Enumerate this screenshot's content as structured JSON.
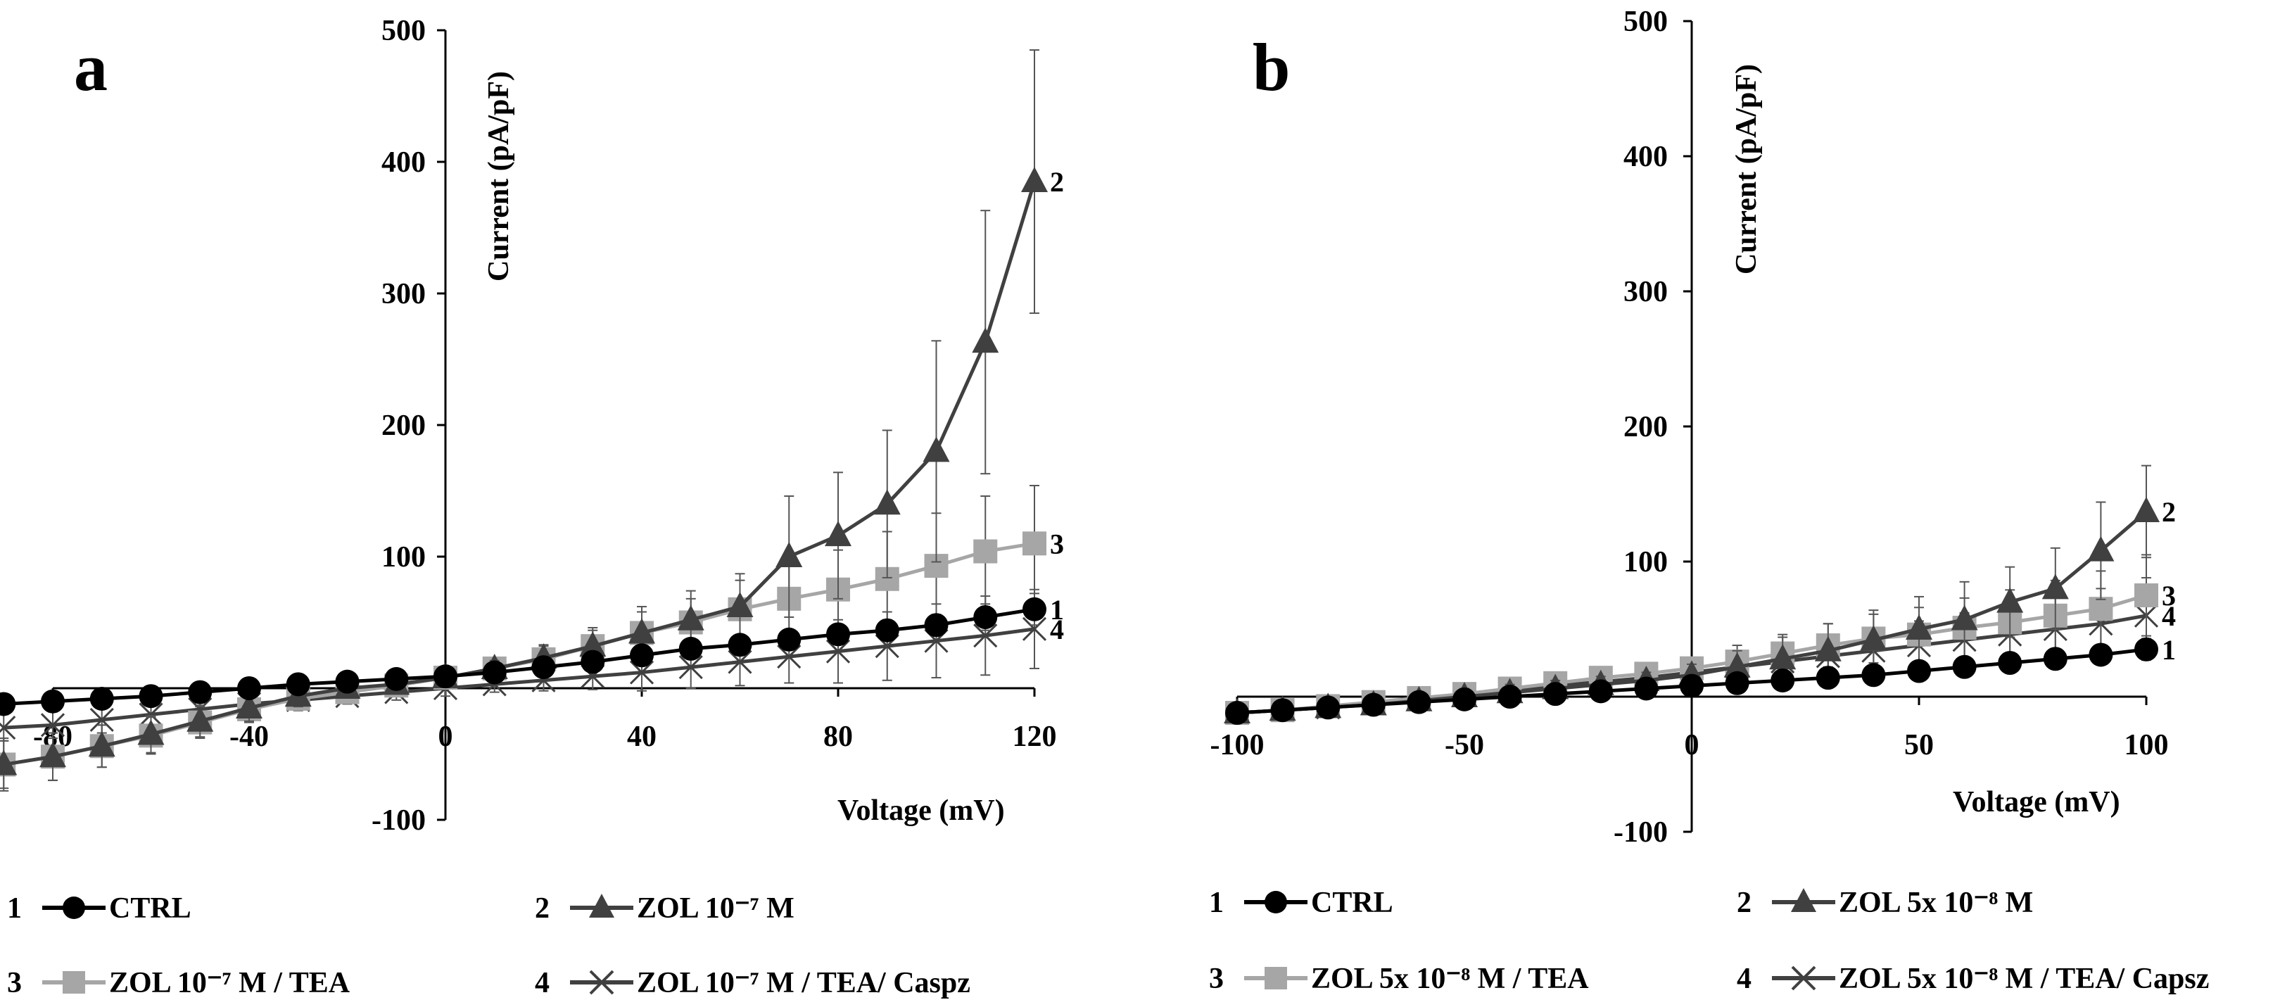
{
  "chart_data": [
    {
      "type": "line",
      "panel_label": "a",
      "xlabel": "Voltage (mV)",
      "ylabel": "Current  (pA/pF)",
      "xlim": [
        -80,
        120
      ],
      "ylim": [
        -100,
        500
      ],
      "xticks": [
        -80,
        -40,
        0,
        40,
        80,
        120
      ],
      "yticks": [
        -100,
        100,
        200,
        300,
        400,
        500
      ],
      "x": [
        -90,
        -80,
        -70,
        -60,
        -50,
        -40,
        -30,
        -20,
        -10,
        0,
        10,
        20,
        30,
        40,
        50,
        60,
        70,
        80,
        90,
        100,
        110,
        120
      ],
      "series": [
        {
          "name": "CTRL",
          "number": "1",
          "marker": "circle",
          "color": "#000000",
          "values": [
            -12,
            -10,
            -8,
            -6,
            -3,
            0,
            3,
            5,
            7,
            9,
            12,
            16,
            20,
            25,
            30,
            33,
            37,
            41,
            44,
            48,
            54,
            60
          ],
          "errors": [
            4,
            4,
            4,
            4,
            4,
            4,
            4,
            4,
            4,
            4,
            4,
            5,
            5,
            6,
            6,
            6,
            7,
            7,
            8,
            8,
            10,
            12
          ]
        },
        {
          "name": "ZOL 10⁻⁷ M",
          "number": "2",
          "marker": "triangle",
          "color": "#404040",
          "values": [
            -58,
            -52,
            -44,
            -35,
            -25,
            -15,
            -6,
            0,
            3,
            8,
            15,
            23,
            32,
            42,
            52,
            62,
            100,
            116,
            140,
            180,
            263,
            385
          ],
          "errors": [
            18,
            18,
            16,
            14,
            12,
            10,
            8,
            6,
            6,
            6,
            6,
            10,
            14,
            20,
            22,
            25,
            46,
            48,
            56,
            84,
            100,
            100
          ]
        },
        {
          "name": "ZOL 10⁻⁷ M / TEA",
          "number": "3",
          "marker": "square",
          "color": "#a6a6a6",
          "values": [
            -58,
            -52,
            -44,
            -36,
            -26,
            -16,
            -8,
            -3,
            2,
            8,
            15,
            22,
            32,
            42,
            50,
            60,
            68,
            75,
            83,
            93,
            104,
            110
          ],
          "errors": [
            20,
            18,
            16,
            14,
            12,
            10,
            8,
            6,
            6,
            6,
            8,
            10,
            12,
            16,
            18,
            22,
            26,
            30,
            36,
            40,
            42,
            44
          ]
        },
        {
          "name": "ZOL 10⁻⁷ M / TEA/ Caspz",
          "number": "4",
          "marker": "x",
          "color": "#404040",
          "values": [
            -30,
            -28,
            -24,
            -20,
            -16,
            -12,
            -9,
            -6,
            -3,
            0,
            3,
            6,
            9,
            12,
            16,
            20,
            24,
            28,
            32,
            36,
            40,
            45
          ],
          "errors": [
            10,
            10,
            10,
            10,
            8,
            8,
            8,
            6,
            6,
            6,
            6,
            8,
            10,
            14,
            16,
            18,
            20,
            24,
            26,
            28,
            30,
            30
          ]
        }
      ]
    },
    {
      "type": "line",
      "panel_label": "b",
      "xlabel": "Voltage (mV)",
      "ylabel": "Current  (pA/pF)",
      "xlim": [
        -100,
        100
      ],
      "ylim": [
        -100,
        500
      ],
      "xticks": [
        -100,
        -50,
        0,
        50,
        100
      ],
      "yticks": [
        -100,
        100,
        200,
        300,
        400,
        500
      ],
      "x": [
        -100,
        -90,
        -80,
        -70,
        -60,
        -50,
        -40,
        -30,
        -20,
        -10,
        0,
        10,
        20,
        30,
        40,
        50,
        60,
        70,
        80,
        90,
        100
      ],
      "series": [
        {
          "name": "CTRL",
          "number": "1",
          "marker": "circle",
          "color": "#000000",
          "values": [
            -12,
            -10,
            -8,
            -6,
            -4,
            -2,
            0,
            2,
            4,
            6,
            8,
            10,
            12,
            14,
            16,
            19,
            22,
            25,
            28,
            31,
            35
          ],
          "errors": [
            4,
            4,
            4,
            4,
            4,
            4,
            4,
            4,
            4,
            4,
            4,
            4,
            5,
            5,
            5,
            5,
            6,
            6,
            6,
            7,
            8
          ]
        },
        {
          "name": "ZOL 5x 10⁻⁸ M",
          "number": "2",
          "marker": "triangle",
          "color": "#404040",
          "values": [
            -12,
            -10,
            -8,
            -6,
            -3,
            0,
            3,
            6,
            9,
            12,
            16,
            22,
            28,
            34,
            42,
            50,
            57,
            70,
            80,
            108,
            137
          ],
          "errors": [
            6,
            6,
            6,
            6,
            6,
            6,
            6,
            6,
            6,
            6,
            8,
            12,
            16,
            20,
            22,
            24,
            28,
            26,
            30,
            36,
            34
          ]
        },
        {
          "name": "ZOL 5x 10⁻⁸ M / TEA",
          "number": "3",
          "marker": "square",
          "color": "#a6a6a6",
          "values": [
            -12,
            -10,
            -7,
            -4,
            -1,
            2,
            6,
            10,
            14,
            17,
            21,
            26,
            32,
            38,
            43,
            46,
            51,
            55,
            60,
            65,
            75
          ],
          "errors": [
            6,
            6,
            6,
            6,
            6,
            6,
            6,
            6,
            6,
            6,
            8,
            12,
            14,
            16,
            18,
            20,
            22,
            24,
            26,
            28,
            30
          ]
        },
        {
          "name": "ZOL 5x 10⁻⁸ M / TEA/ Capsz",
          "number": "4",
          "marker": "x",
          "color": "#404040",
          "values": [
            -12,
            -10,
            -8,
            -5,
            -2,
            1,
            4,
            8,
            11,
            14,
            18,
            22,
            26,
            30,
            34,
            38,
            42,
            46,
            50,
            54,
            60
          ],
          "errors": [
            6,
            6,
            6,
            6,
            6,
            6,
            6,
            6,
            6,
            6,
            8,
            10,
            12,
            14,
            16,
            18,
            20,
            22,
            24,
            26,
            28
          ]
        }
      ]
    }
  ]
}
